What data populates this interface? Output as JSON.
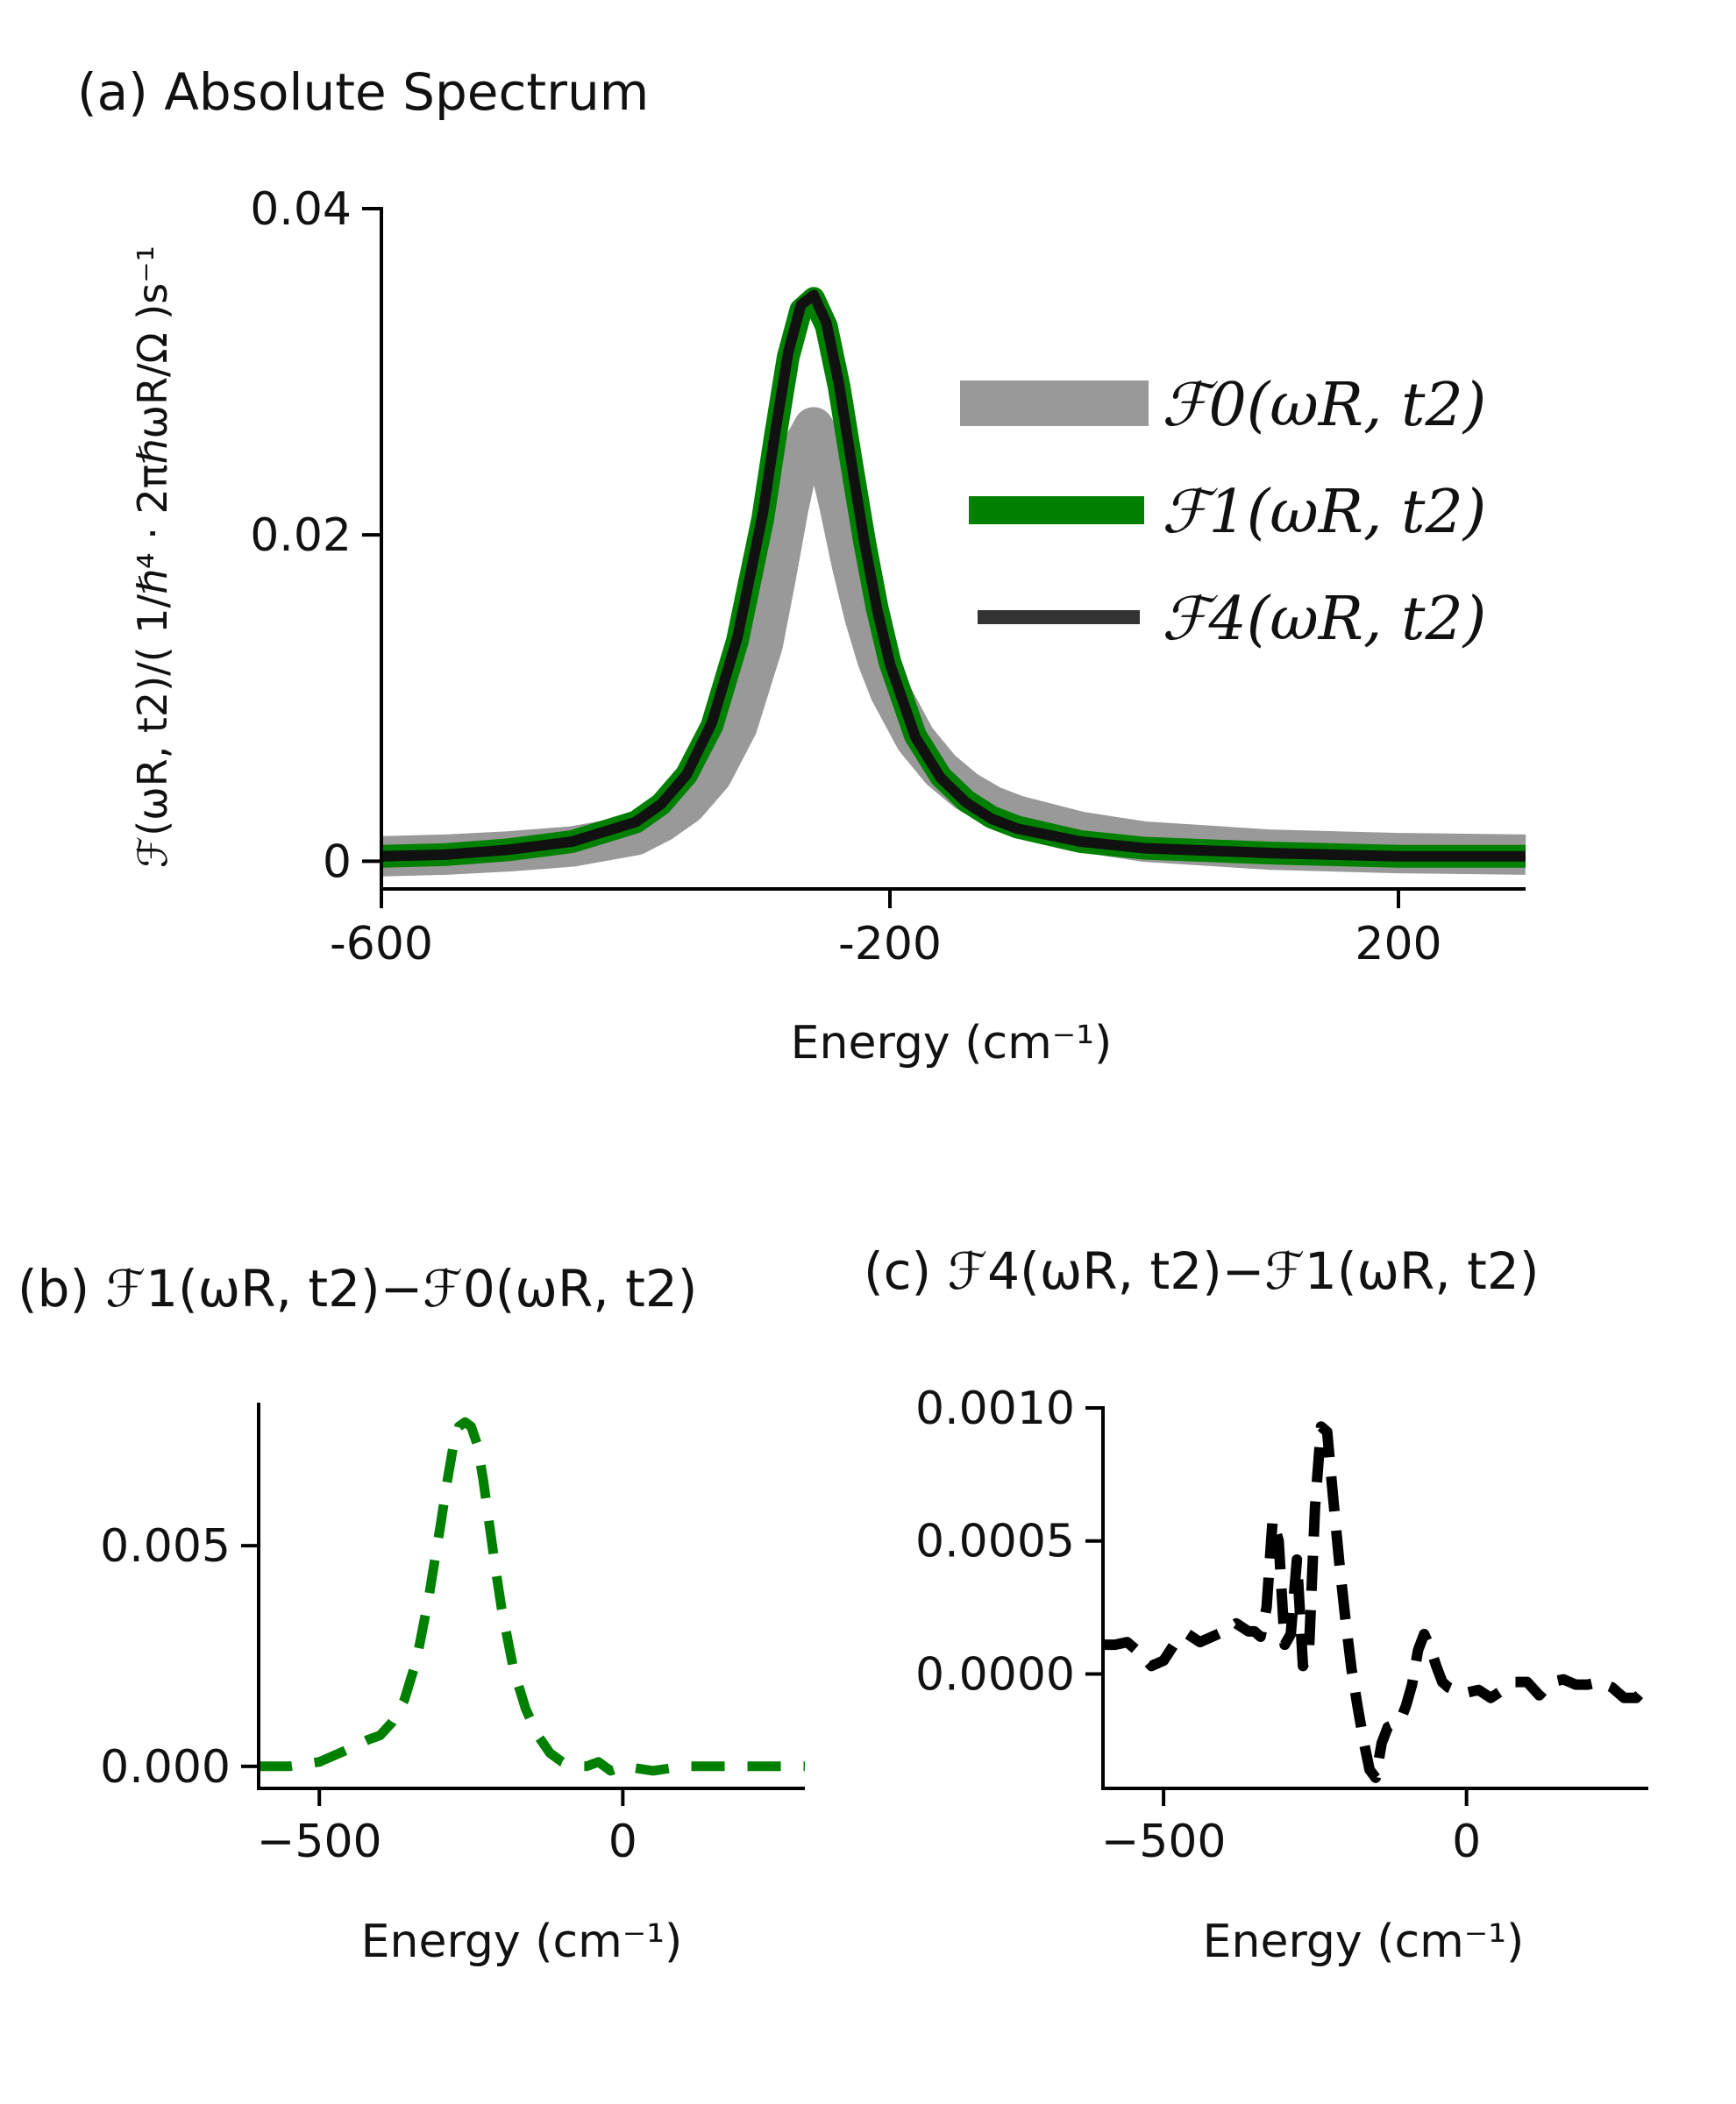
{
  "chart_data": [
    {
      "type": "line",
      "title": "(a) Absolute Spectrum",
      "xlabel": "Energy (cm⁻¹)",
      "ylabel": "ℱ(ωR, t2)/( 1/ℏ⁴ · 2πℏωR/Ω )s⁻¹",
      "xlim": [
        -600,
        300
      ],
      "ylim": [
        -0.0017,
        0.04
      ],
      "xticks": [
        -600,
        -200,
        200
      ],
      "xtick_labels": [
        "-600",
        "-200",
        "200"
      ],
      "yticks": [
        0,
        0.02,
        0.04
      ],
      "ytick_labels": [
        "0",
        "0.02",
        "0.04"
      ],
      "legend_position": "right",
      "x": [
        -600,
        -550,
        -500,
        -450,
        -400,
        -380,
        -360,
        -340,
        -320,
        -300,
        -290,
        -280,
        -270,
        -260,
        -250,
        -240,
        -230,
        -220,
        -210,
        -200,
        -180,
        -160,
        -140,
        -120,
        -100,
        -50,
        0,
        100,
        200,
        300
      ],
      "series": [
        {
          "name": "ℱ0(ωR, t2)",
          "color": "#999999",
          "values": [
            0.0003,
            0.0004,
            0.0006,
            0.0009,
            0.0016,
            0.0024,
            0.0035,
            0.0053,
            0.0083,
            0.0133,
            0.0173,
            0.0216,
            0.0252,
            0.0266,
            0.0252,
            0.0219,
            0.0182,
            0.015,
            0.0124,
            0.0104,
            0.0075,
            0.0056,
            0.0043,
            0.0034,
            0.0028,
            0.0018,
            0.0012,
            0.0007,
            0.0005,
            0.0004
          ]
        },
        {
          "name": "ℱ1(ωR, t2)",
          "color": "#008000",
          "values": [
            0.0003,
            0.0004,
            0.0007,
            0.0012,
            0.0024,
            0.0035,
            0.0053,
            0.0083,
            0.0135,
            0.021,
            0.0261,
            0.0309,
            0.0338,
            0.0345,
            0.0328,
            0.0291,
            0.0243,
            0.0196,
            0.0155,
            0.0122,
            0.0077,
            0.0052,
            0.0037,
            0.0027,
            0.0021,
            0.0012,
            0.0008,
            0.0005,
            0.0003,
            0.0003
          ]
        },
        {
          "name": "ℱ4(ωR, t2)",
          "color": "#333333",
          "values": [
            0.0003,
            0.0004,
            0.0007,
            0.0012,
            0.0024,
            0.0035,
            0.0053,
            0.0085,
            0.0137,
            0.0213,
            0.0264,
            0.0312,
            0.0341,
            0.0347,
            0.033,
            0.0292,
            0.0243,
            0.0195,
            0.0154,
            0.0121,
            0.0076,
            0.0051,
            0.0036,
            0.0026,
            0.002,
            0.0012,
            0.0008,
            0.0005,
            0.0003,
            0.0003
          ]
        }
      ]
    },
    {
      "type": "line",
      "title": "(b) ℱ1(ωR, t2)−ℱ0(ωR, t2)",
      "xlabel": "Energy (cm⁻¹)",
      "ylabel": "",
      "xlim": [
        -600,
        300
      ],
      "ylim": [
        -0.0005,
        0.0082
      ],
      "xticks": [
        -500,
        0
      ],
      "xtick_labels": [
        "−500",
        "0"
      ],
      "yticks": [
        0.0,
        0.005
      ],
      "ytick_labels": [
        "0.000",
        "0.005"
      ],
      "x": [
        -600,
        -550,
        -500,
        -450,
        -420,
        -400,
        -380,
        -360,
        -340,
        -320,
        -300,
        -290,
        -280,
        -270,
        -260,
        -250,
        -240,
        -230,
        -220,
        -210,
        -200,
        -180,
        -160,
        -140,
        -120,
        -100,
        -80,
        -60,
        -40,
        -20,
        0,
        50,
        100,
        150,
        200,
        250,
        300
      ],
      "series": [
        {
          "name": "difference 1-0",
          "color": "#008000",
          "dashed": true,
          "values": [
            0.0,
            0.0,
            0.0001,
            0.0004,
            0.0006,
            0.0007,
            0.001,
            0.0015,
            0.0024,
            0.0038,
            0.0055,
            0.0064,
            0.0072,
            0.0077,
            0.0078,
            0.0077,
            0.0073,
            0.0065,
            0.0055,
            0.0045,
            0.0036,
            0.0022,
            0.0013,
            0.0007,
            0.0003,
            0.0001,
            0.0,
            0.0,
            0.0001,
            -0.0001,
            0.0,
            -0.0001,
            0.0,
            0.0,
            0.0,
            0.0,
            0.0
          ]
        }
      ]
    },
    {
      "type": "line",
      "title": "(c) ℱ4(ωR, t2)−ℱ1(ωR, t2)",
      "xlabel": "Energy (cm⁻¹)",
      "ylabel": "",
      "xlim": [
        -600,
        300
      ],
      "ylim": [
        -0.00043,
        0.001
      ],
      "xticks": [
        -500,
        0
      ],
      "xtick_labels": [
        "−500",
        "0"
      ],
      "yticks": [
        0.0,
        0.0005,
        0.001
      ],
      "ytick_labels": [
        "0.0000",
        "0.0005",
        "0.0010"
      ],
      "x": [
        -600,
        -580,
        -560,
        -540,
        -520,
        -500,
        -480,
        -460,
        -440,
        -420,
        -400,
        -380,
        -360,
        -350,
        -340,
        -330,
        -320,
        -310,
        -300,
        -290,
        -280,
        -270,
        -260,
        -250,
        -240,
        -230,
        -220,
        -210,
        -200,
        -190,
        -180,
        -170,
        -160,
        -150,
        -140,
        -130,
        -120,
        -110,
        -100,
        -90,
        -80,
        -70,
        -60,
        -50,
        -40,
        -30,
        -20,
        -10,
        0,
        20,
        40,
        60,
        80,
        100,
        120,
        140,
        160,
        180,
        200,
        220,
        240,
        260,
        280,
        300
      ],
      "series": [
        {
          "name": "difference 4-1",
          "color": "#000000",
          "dashed": true,
          "values": [
            0.00011,
            0.00011,
            0.00012,
            8e-05,
            3e-05,
            5e-05,
            0.00012,
            0.00015,
            0.00012,
            0.00014,
            0.00016,
            0.00019,
            0.00016,
            0.00016,
            0.00014,
            0.00025,
            0.00058,
            0.0005,
            0.00011,
            0.00015,
            0.00043,
            3e-05,
            9e-05,
            0.00063,
            0.00093,
            0.00091,
            0.00066,
            0.00042,
            0.00021,
            2e-05,
            -0.00012,
            -0.00025,
            -0.00036,
            -0.00039,
            -0.00026,
            -0.0002,
            -0.00019,
            -0.00018,
            -0.00012,
            -4e-05,
            9e-05,
            0.00015,
            0.0001,
            3e-05,
            -3e-05,
            -5e-05,
            -6e-05,
            -7e-05,
            -7e-05,
            -6e-05,
            -9e-05,
            -6e-05,
            -3e-05,
            -3e-05,
            -8e-05,
            -3e-05,
            -2e-05,
            -4e-05,
            -4e-05,
            -3e-05,
            -5e-05,
            -9e-05,
            -9e-05,
            -4e-05
          ]
        }
      ]
    }
  ]
}
